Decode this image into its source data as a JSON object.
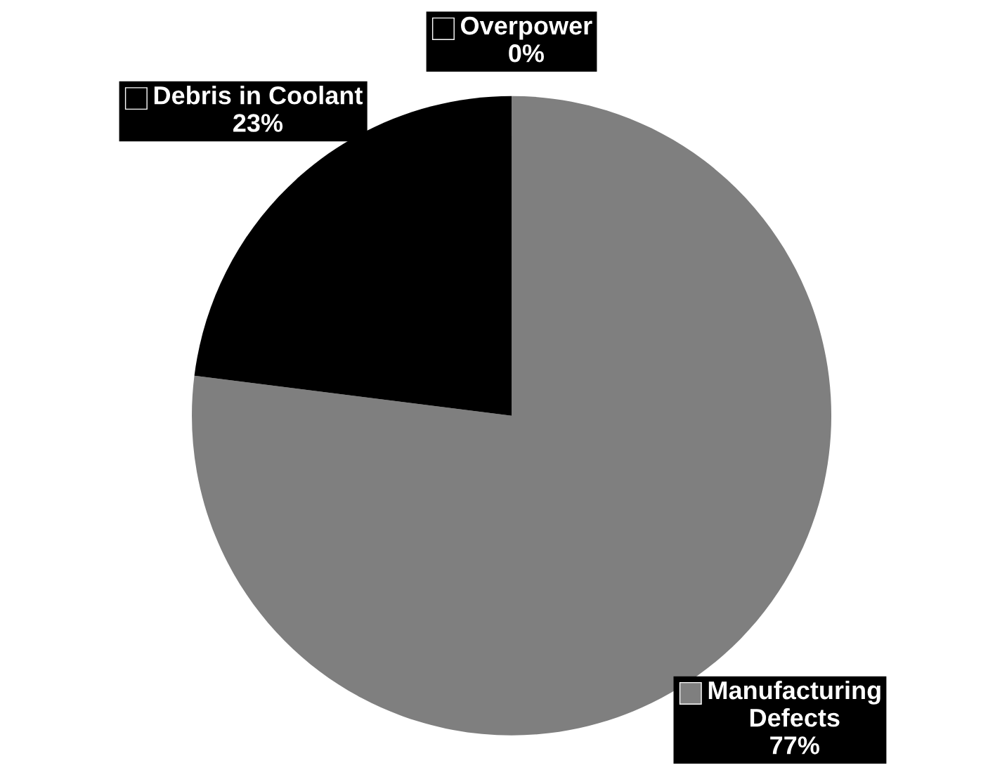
{
  "chart_data": {
    "type": "pie",
    "categories": [
      "Manufacturing\nDefects",
      "Debris in Coolant",
      "Overpower"
    ],
    "values": [
      77,
      23,
      0
    ],
    "value_labels": [
      "77%",
      "23%",
      "0%"
    ],
    "colors": [
      "#7f7f7f",
      "#000000",
      "#000000"
    ],
    "legend": "top left"
  }
}
